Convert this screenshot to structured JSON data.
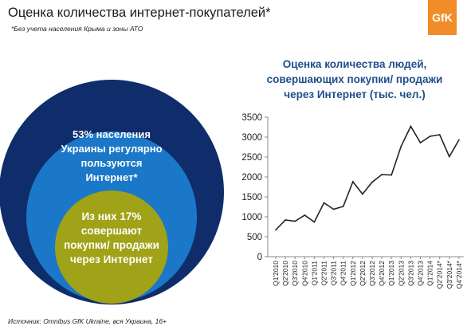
{
  "header": {
    "title": "Оценка количества интернет-покупателей*",
    "note": "*Без учета населения Крыма и зоны АТО",
    "logo_text": "GfK"
  },
  "diagram": {
    "outer_color": "#0f2d6b",
    "middle_color": "#1b78c8",
    "inner_color": "#a0a217",
    "middle_label": "53% населения\nУкраины регулярно\nпользуются\nИнтернет*",
    "inner_label": "Из них 17%\nсовершают\nпокупки/ продажи\nчерез Интернет"
  },
  "footer": {
    "source": "Источник: Omnibus GfK Ukraine, вся Украина, 16+"
  },
  "chart_title_lines": [
    "Оценка количества людей,",
    "совершающих покупки/ продажи",
    "через Интернет (тыс. чел.)"
  ],
  "chart_data": {
    "type": "line",
    "title": "Оценка количества людей, совершающих покупки/ продажи через Интернет (тыс. чел.)",
    "categories": [
      "Q1'2010",
      "Q2'2010",
      "Q3'2010",
      "Q4'2010",
      "Q1'2011",
      "Q2'2011",
      "Q3'2011",
      "Q4'2011",
      "Q1'2012",
      "Q2'2012",
      "Q3'2012",
      "Q4'2012",
      "Q1'2013",
      "Q2'2013",
      "Q3'2013",
      "Q4'2013",
      "Q1'2014",
      "Q2'2014*",
      "Q3'2014*",
      "Q4'2014*"
    ],
    "values": [
      670,
      920,
      890,
      1040,
      870,
      1350,
      1190,
      1260,
      1880,
      1570,
      1870,
      2060,
      2050,
      2770,
      3270,
      2860,
      3020,
      3060,
      2510,
      2930
    ],
    "ylim": [
      0,
      3500
    ],
    "yticks": [
      0,
      500,
      1000,
      1500,
      2000,
      2500,
      3000,
      3500
    ],
    "grid": false,
    "line_color": "#222222"
  }
}
